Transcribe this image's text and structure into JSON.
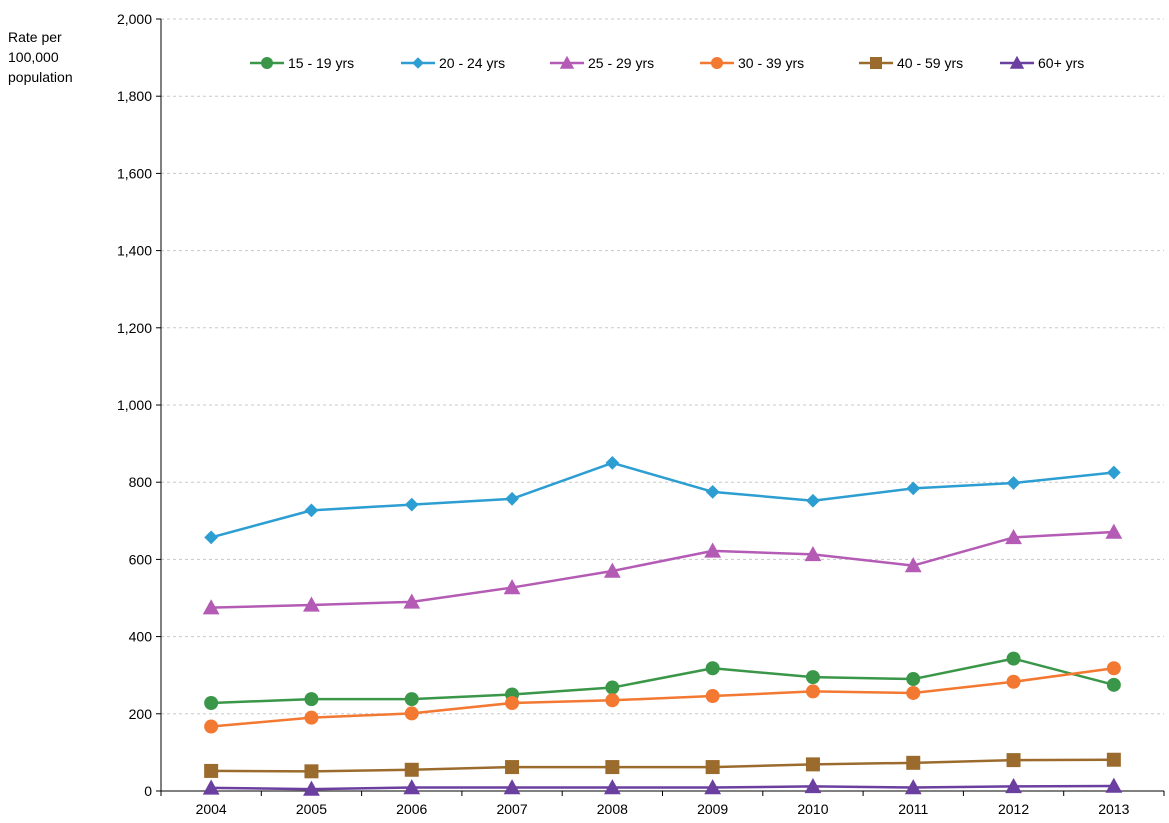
{
  "chart_data": {
    "type": "line",
    "title": "",
    "xlabel": "",
    "ylabel_lines": [
      "Rate per",
      "100,000",
      "population"
    ],
    "x": [
      "2004",
      "2005",
      "2006",
      "2007",
      "2008",
      "2009",
      "2010",
      "2011",
      "2012",
      "2013"
    ],
    "ylim": [
      0,
      2000
    ],
    "ytick_values": [
      0,
      200,
      400,
      600,
      800,
      1000,
      1200,
      1400,
      1600,
      1800,
      2000
    ],
    "ytick_labels": [
      "0",
      "200",
      "400",
      "600",
      "800",
      "1,000",
      "1,200",
      "1,400",
      "1,600",
      "1,800",
      "2,000"
    ],
    "grid": "horizontal dashed",
    "legend_position": "top",
    "series": [
      {
        "name": "15 - 19 yrs",
        "color": "#3a9648",
        "marker": "circle",
        "values": [
          228,
          238,
          238,
          250,
          268,
          318,
          295,
          290,
          343,
          275
        ]
      },
      {
        "name": "20 - 24 yrs",
        "color": "#2d9ed2",
        "marker": "diamond",
        "values": [
          657,
          727,
          742,
          757,
          850,
          775,
          752,
          784,
          798,
          825
        ]
      },
      {
        "name": "25 - 29 yrs",
        "color": "#b45cb5",
        "marker": "triangle",
        "values": [
          475,
          482,
          490,
          527,
          570,
          622,
          613,
          584,
          657,
          671
        ]
      },
      {
        "name": "30 - 39 yrs",
        "color": "#f37831",
        "marker": "circle",
        "values": [
          167,
          190,
          201,
          228,
          235,
          246,
          258,
          254,
          283,
          318
        ]
      },
      {
        "name": "40 - 59 yrs",
        "color": "#9b6b2e",
        "marker": "square",
        "values": [
          52,
          51,
          55,
          62,
          62,
          62,
          69,
          73,
          80,
          81
        ]
      },
      {
        "name": "60+ yrs",
        "color": "#6b3fa0",
        "marker": "triangle",
        "values": [
          8,
          5,
          9,
          9,
          9,
          9,
          12,
          9,
          12,
          13
        ]
      }
    ]
  }
}
